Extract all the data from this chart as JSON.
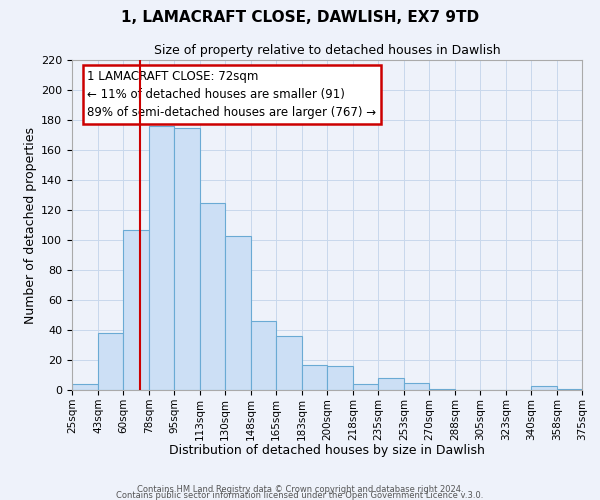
{
  "title": "1, LAMACRAFT CLOSE, DAWLISH, EX7 9TD",
  "subtitle": "Size of property relative to detached houses in Dawlish",
  "xlabel": "Distribution of detached houses by size in Dawlish",
  "ylabel": "Number of detached properties",
  "bar_color": "#ccdff5",
  "bar_edge_color": "#6aaad4",
  "grid_color": "#c8d8ec",
  "background_color": "#eef2fa",
  "vline_x": 72,
  "vline_color": "#cc0000",
  "bin_edges": [
    25,
    43,
    60,
    78,
    95,
    113,
    130,
    148,
    165,
    183,
    200,
    218,
    235,
    253,
    270,
    288,
    305,
    323,
    340,
    358,
    375
  ],
  "bar_heights": [
    4,
    38,
    107,
    176,
    175,
    125,
    103,
    46,
    36,
    17,
    16,
    4,
    8,
    5,
    1,
    0,
    0,
    0,
    3,
    1
  ],
  "xlim": [
    25,
    375
  ],
  "ylim": [
    0,
    220
  ],
  "yticks": [
    0,
    20,
    40,
    60,
    80,
    100,
    120,
    140,
    160,
    180,
    200,
    220
  ],
  "xtick_labels": [
    "25sqm",
    "43sqm",
    "60sqm",
    "78sqm",
    "95sqm",
    "113sqm",
    "130sqm",
    "148sqm",
    "165sqm",
    "183sqm",
    "200sqm",
    "218sqm",
    "235sqm",
    "253sqm",
    "270sqm",
    "288sqm",
    "305sqm",
    "323sqm",
    "340sqm",
    "358sqm",
    "375sqm"
  ],
  "annotation_title": "1 LAMACRAFT CLOSE: 72sqm",
  "annotation_line1": "← 11% of detached houses are smaller (91)",
  "annotation_line2": "89% of semi-detached houses are larger (767) →",
  "annotation_box_facecolor": "white",
  "annotation_box_edgecolor": "#cc0000",
  "footer_line1": "Contains HM Land Registry data © Crown copyright and database right 2024.",
  "footer_line2": "Contains public sector information licensed under the Open Government Licence v.3.0."
}
